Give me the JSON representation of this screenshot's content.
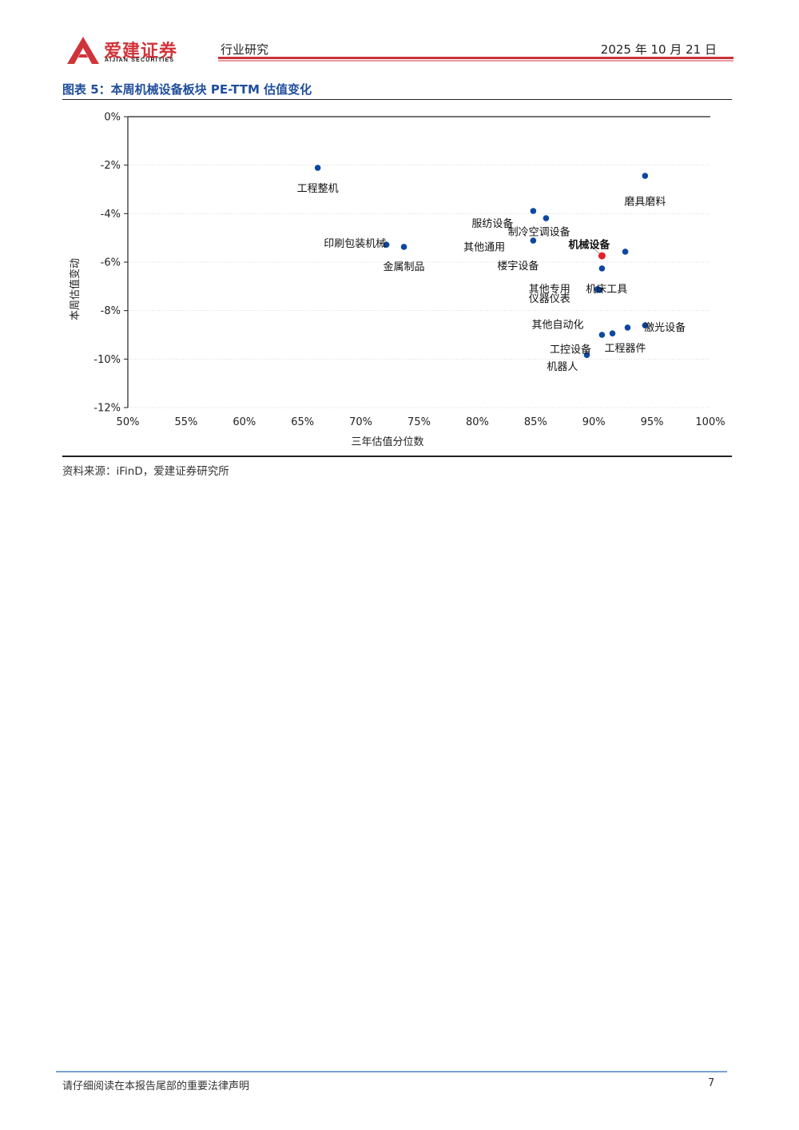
{
  "header": {
    "brand_cn": "爱建证券",
    "brand_en": "AIJIAN SECURITIES",
    "section": "行业研究",
    "date": "2025 年 10 月 21 日"
  },
  "figure": {
    "title": "图表 5：本周机械设备板块 PE-TTM 估值变化",
    "source": "资料来源：iFinD，爱建证券研究所"
  },
  "footer": {
    "disclaimer": "请仔细阅读在本报告尾部的重要法律声明",
    "page": "7"
  },
  "colors": {
    "brand_red": "#c9323a",
    "title_blue": "#1f4e9c",
    "point_blue": "#0d47a1",
    "highlight_red": "#e0242b"
  },
  "chart_data": {
    "type": "scatter",
    "title": "本周机械设备板块 PE-TTM 估值变化",
    "xlabel": "三年估值分位数",
    "ylabel": "本周估值变动",
    "xlim": [
      0.5,
      1.0
    ],
    "ylim": [
      -0.12,
      0.0
    ],
    "x_ticks": [
      "50%",
      "55%",
      "60%",
      "65%",
      "70%",
      "75%",
      "80%",
      "85%",
      "90%",
      "95%",
      "100%"
    ],
    "y_ticks": [
      "0%",
      "-2%",
      "-4%",
      "-6%",
      "-8%",
      "-10%",
      "-12%"
    ],
    "grid": "horizontal-dotted",
    "points": [
      {
        "x": 0.663,
        "y": -0.0211,
        "highlight": false
      },
      {
        "x": 0.944,
        "y": -0.0244,
        "highlight": false
      },
      {
        "x": 0.848,
        "y": -0.0389,
        "highlight": false
      },
      {
        "x": 0.859,
        "y": -0.0419,
        "highlight": false
      },
      {
        "x": 0.722,
        "y": -0.0528,
        "highlight": false
      },
      {
        "x": 0.737,
        "y": -0.0537,
        "highlight": false
      },
      {
        "x": 0.848,
        "y": -0.0511,
        "highlight": false
      },
      {
        "x": 0.927,
        "y": -0.0557,
        "highlight": false
      },
      {
        "x": 0.907,
        "y": -0.0626,
        "highlight": false
      },
      {
        "x": 0.903,
        "y": -0.0712,
        "highlight": false
      },
      {
        "x": 0.905,
        "y": -0.0715,
        "highlight": false
      },
      {
        "x": 0.904,
        "y": -0.0713,
        "highlight": false
      },
      {
        "x": 0.944,
        "y": -0.0861,
        "highlight": false
      },
      {
        "x": 0.929,
        "y": -0.087,
        "highlight": false
      },
      {
        "x": 0.916,
        "y": -0.0894,
        "highlight": false
      },
      {
        "x": 0.907,
        "y": -0.09,
        "highlight": false
      },
      {
        "x": 0.894,
        "y": -0.0983,
        "highlight": false
      },
      {
        "x": 0.907,
        "y": -0.0574,
        "highlight": true
      }
    ],
    "labels": [
      {
        "text": "工程整机",
        "x": 0.663,
        "y": -0.0295,
        "bold": false
      },
      {
        "text": "磨具磨料",
        "x": 0.944,
        "y": -0.035,
        "bold": false
      },
      {
        "text": "服纺设备",
        "x": 0.813,
        "y": -0.044,
        "bold": false
      },
      {
        "text": "制冷空调设备",
        "x": 0.853,
        "y": -0.0475,
        "bold": false
      },
      {
        "text": "印刷包装机械",
        "x": 0.695,
        "y": -0.0523,
        "bold": false
      },
      {
        "text": "金属制品",
        "x": 0.737,
        "y": -0.0618,
        "bold": false
      },
      {
        "text": "其他通用",
        "x": 0.806,
        "y": -0.0538,
        "bold": false
      },
      {
        "text": "机械设备",
        "x": 0.896,
        "y": -0.0528,
        "bold": true
      },
      {
        "text": "楼宇设备",
        "x": 0.835,
        "y": -0.0615,
        "bold": false
      },
      {
        "text": "其他专用",
        "x": 0.862,
        "y": -0.071,
        "bold": false
      },
      {
        "text": "仪器仪表",
        "x": 0.862,
        "y": -0.075,
        "bold": false
      },
      {
        "text": "机床工具",
        "x": 0.911,
        "y": -0.071,
        "bold": false
      },
      {
        "text": "其他自动化",
        "x": 0.869,
        "y": -0.0857,
        "bold": false
      },
      {
        "text": "激光设备",
        "x": 0.961,
        "y": -0.0868,
        "bold": false
      },
      {
        "text": "工控设备",
        "x": 0.88,
        "y": -0.096,
        "bold": false
      },
      {
        "text": "工程器件",
        "x": 0.927,
        "y": -0.0955,
        "bold": false
      },
      {
        "text": "机器人",
        "x": 0.873,
        "y": -0.103,
        "bold": false
      }
    ]
  }
}
